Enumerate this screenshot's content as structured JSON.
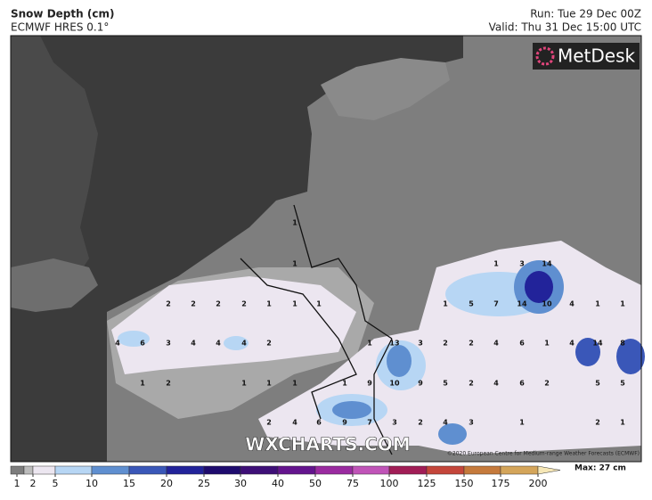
{
  "header": {
    "title": "Snow Depth (cm)",
    "model": "ECMWF HRES 0.1°",
    "run": "Run: Tue 29 Dec 00Z",
    "valid": "Valid: Thu 31 Dec 15:00 UTC"
  },
  "logo": "MetDesk",
  "watermark": "WXCHARTS.COM",
  "credit": "©2020 European Centre for Medium-range Weather Forecasts (ECMWF)",
  "legend": {
    "max_label": "Max: 27 cm",
    "ticks": [
      1,
      2,
      5,
      10,
      15,
      20,
      25,
      30,
      40,
      50,
      75,
      100,
      125,
      150,
      175,
      200
    ],
    "colors": [
      "#7d7d7d",
      "#bcbcbc",
      "#ece6f0",
      "#b7d6f4",
      "#5f8fd0",
      "#3a57b8",
      "#22239a",
      "#1e0b6e",
      "#3e0f77",
      "#64148e",
      "#9a2ba0",
      "#c054b8",
      "#a11d56",
      "#c4463b",
      "#c57a3c",
      "#d4a55a",
      "#e5c987",
      "#f6e7b6"
    ]
  },
  "map_labels": [
    1,
    1,
    1,
    3,
    14,
    2,
    2,
    2,
    2,
    1,
    1,
    1,
    1,
    5,
    7,
    14,
    10,
    4,
    1,
    1,
    4,
    6,
    3,
    4,
    4,
    4,
    2,
    1,
    13,
    3,
    2,
    2,
    4,
    6,
    1,
    4,
    14,
    8,
    1,
    2,
    1,
    1,
    1,
    1,
    9,
    10,
    9,
    5,
    2,
    4,
    6,
    2,
    5,
    5,
    2,
    4,
    6,
    9,
    7,
    3,
    2,
    4,
    3,
    1,
    2,
    1
  ]
}
